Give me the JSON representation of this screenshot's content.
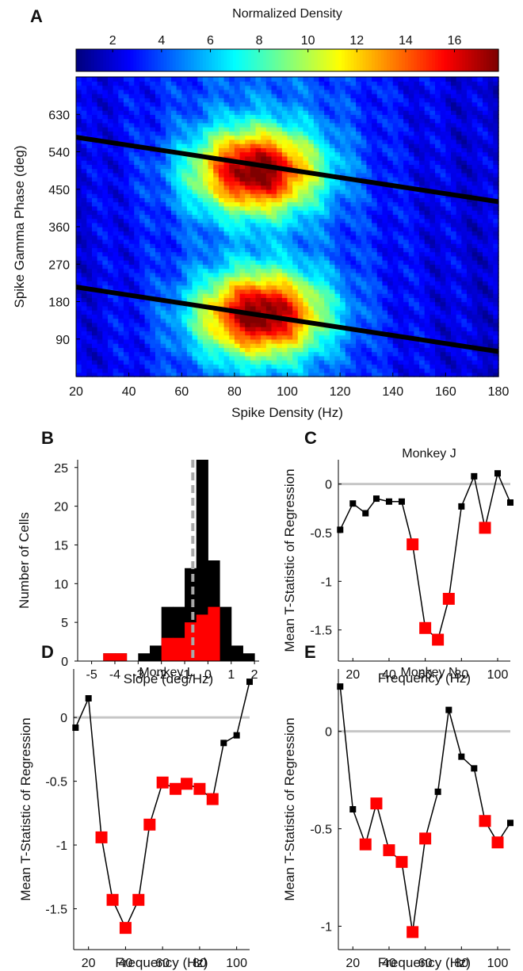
{
  "chart_data": [
    {
      "id": "A",
      "panel_label": "A",
      "type": "heatmap",
      "colorbar_title": "Normalized Density",
      "colorbar_ticks": [
        2,
        4,
        6,
        8,
        10,
        12,
        14,
        16
      ],
      "colorbar_range": [
        0.5,
        17.8
      ],
      "colormap": "jet",
      "xlabel": "Spike Density (Hz)",
      "ylabel": "Spike Gamma Phase (deg)",
      "xlim": [
        20,
        180
      ],
      "ylim": [
        0,
        720
      ],
      "xticks": [
        20,
        40,
        60,
        80,
        100,
        120,
        140,
        160,
        180
      ],
      "yticks": [
        90,
        180,
        270,
        360,
        450,
        540,
        630
      ],
      "hot_bands": [
        {
          "x_center": 88,
          "y_center": 495,
          "x_spread": 24,
          "y_spread": 95,
          "peak": 17
        },
        {
          "x_center": 90,
          "y_center": 150,
          "x_spread": 24,
          "y_spread": 95,
          "peak": 17
        }
      ],
      "fit_lines": [
        {
          "x": [
            20,
            180
          ],
          "y": [
            575,
            420
          ]
        },
        {
          "x": [
            20,
            180
          ],
          "y": [
            215,
            60
          ]
        }
      ]
    },
    {
      "id": "B",
      "panel_label": "B",
      "type": "bar",
      "xlabel": "Slope (deg/Hz)",
      "ylabel": "Number of Cells",
      "xlim": [
        -5.6,
        2.2
      ],
      "ylim": [
        0,
        26
      ],
      "xticks": [
        -5,
        -4,
        -3,
        -2,
        -1,
        0,
        1,
        2
      ],
      "yticks": [
        0,
        5,
        10,
        15,
        20,
        25
      ],
      "bin_edges": [
        -4.5,
        -4,
        -3.5,
        -3,
        -2.5,
        -2,
        -1.5,
        -1,
        -0.5,
        0,
        0.5,
        1,
        1.5,
        2
      ],
      "series": [
        {
          "name": "",
          "color": "#000000",
          "values": [
            1,
            1,
            0,
            1,
            2,
            7,
            7,
            12,
            26,
            13,
            7,
            2,
            1
          ]
        },
        {
          "name": "",
          "color": "#ff0000",
          "values": [
            1,
            1,
            0,
            0,
            0,
            3,
            3,
            5,
            6,
            7,
            0,
            0,
            0
          ]
        }
      ],
      "reference_line_x": -0.65
    },
    {
      "id": "C",
      "panel_label": "C",
      "type": "line",
      "title": "Monkey J",
      "xlabel": "Frequency (Hz)",
      "ylabel": "Mean T-Statistic of Regression",
      "xlim": [
        12,
        107
      ],
      "ylim": [
        -1.82,
        0.25
      ],
      "xticks": [
        20,
        40,
        60,
        80,
        100
      ],
      "yticks": [
        0,
        -0.5,
        -1,
        -1.5
      ],
      "x": [
        13,
        20,
        27,
        33,
        40,
        47,
        53,
        60,
        67,
        73,
        80,
        87,
        93,
        100,
        107
      ],
      "y": [
        -0.47,
        -0.2,
        -0.3,
        -0.15,
        -0.18,
        -0.18,
        -0.62,
        -1.48,
        -1.6,
        -1.18,
        -0.23,
        0.08,
        -0.45,
        0.11,
        -0.19
      ],
      "significant": [
        false,
        false,
        false,
        false,
        false,
        false,
        true,
        true,
        true,
        true,
        false,
        false,
        true,
        false,
        false
      ]
    },
    {
      "id": "D",
      "panel_label": "D",
      "type": "line",
      "title": "Monkey L",
      "xlabel": "Frequency (Hz)",
      "ylabel": "Mean T-Statistic of Regression",
      "xlim": [
        12,
        107
      ],
      "ylim": [
        -1.82,
        0.38
      ],
      "xticks": [
        20,
        40,
        60,
        80,
        100
      ],
      "yticks": [
        0,
        -0.5,
        -1,
        -1.5
      ],
      "x": [
        13,
        20,
        27,
        33,
        40,
        47,
        53,
        60,
        67,
        73,
        80,
        87,
        93,
        100,
        107
      ],
      "y": [
        -0.08,
        0.15,
        -0.94,
        -1.43,
        -1.65,
        -1.43,
        -0.84,
        -0.51,
        -0.56,
        -0.52,
        -0.56,
        -0.64,
        -0.2,
        -0.14,
        0.28
      ],
      "significant": [
        false,
        false,
        true,
        true,
        true,
        true,
        true,
        true,
        true,
        true,
        true,
        true,
        false,
        false,
        false
      ]
    },
    {
      "id": "E",
      "panel_label": "E",
      "type": "line",
      "title": "Monkey N",
      "xlabel": "Frequency (Hz)",
      "ylabel": "Mean T-Statistic of Regression",
      "xlim": [
        12,
        107
      ],
      "ylim": [
        -1.12,
        0.32
      ],
      "xticks": [
        20,
        40,
        60,
        80,
        100
      ],
      "yticks": [
        0,
        -0.5,
        -1
      ],
      "x": [
        13,
        20,
        27,
        33,
        40,
        47,
        53,
        60,
        67,
        73,
        80,
        87,
        93,
        100,
        107
      ],
      "y": [
        0.23,
        -0.4,
        -0.58,
        -0.37,
        -0.61,
        -0.67,
        -1.03,
        -0.55,
        -0.31,
        0.11,
        -0.13,
        -0.19,
        -0.46,
        -0.57,
        -0.47
      ],
      "significant": [
        false,
        false,
        true,
        true,
        true,
        true,
        true,
        true,
        false,
        false,
        false,
        false,
        true,
        true,
        false
      ]
    }
  ]
}
